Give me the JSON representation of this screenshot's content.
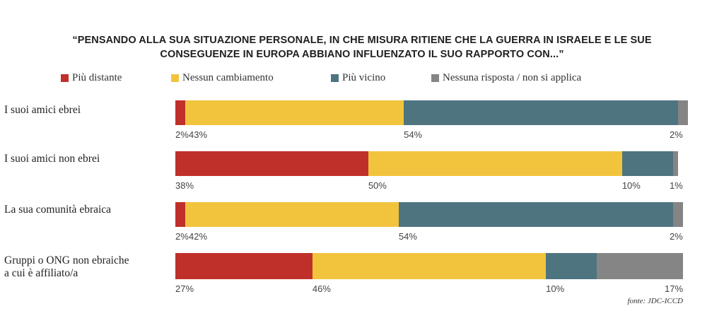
{
  "chart_data": {
    "type": "bar",
    "orientation": "horizontal",
    "stacked": true,
    "title_lines": [
      "“PENSANDO ALLA SUA SITUAZIONE PERSONALE, IN CHE MISURA RITIENE CHE LA GUERRA IN ISRAELE E LE SUE",
      "CONSEGUENZE IN EUROPA ABBIANO INFLUENZATO IL SUO RAPPORTO CON...”"
    ],
    "categories": [
      {
        "label_lines": [
          "I suoi amici ebrei"
        ]
      },
      {
        "label_lines": [
          "I suoi amici non ebrei"
        ]
      },
      {
        "label_lines": [
          "La sua comunità ebraica"
        ]
      },
      {
        "label_lines": [
          "Gruppi o ONG non ebraiche",
          "a cui  è affiliato/a"
        ]
      }
    ],
    "series": [
      {
        "name": "Più distante",
        "color": "#c0302b",
        "values": [
          2,
          38,
          2,
          27
        ],
        "labels": [
          "2%",
          "38%",
          "2%",
          "27%"
        ]
      },
      {
        "name": "Nessun cambiamento",
        "color": "#f2c43d",
        "values": [
          43,
          50,
          42,
          46
        ],
        "labels": [
          "43%",
          "50%",
          "42%",
          "46%"
        ]
      },
      {
        "name": "Più vicino",
        "color": "#4e7480",
        "values": [
          54,
          10,
          54,
          10
        ],
        "labels": [
          "54%",
          "10%",
          "54%",
          "10%"
        ]
      },
      {
        "name": "Nessuna risposta / non si applica",
        "color": "#858585",
        "values": [
          2,
          1,
          2,
          17
        ],
        "labels": [
          "2%",
          "1%",
          "2%",
          "17%"
        ]
      }
    ],
    "xlim": [
      0,
      100
    ],
    "legend_position": "top",
    "grid": false
  },
  "source": "fonte: JDC-ICCD"
}
